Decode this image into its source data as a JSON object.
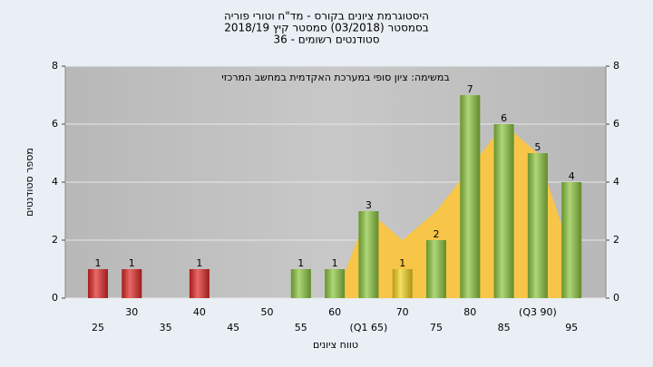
{
  "chart_data": {
    "type": "bar",
    "title": "היסטוגרמת ציונים בקורס - מד\"ח וטורי פוריה",
    "subtitle": "בסמסטר  (03/2018)  סמסטר קיץ  2018/19",
    "subtitle2": "סטודנטים רשומים - 36",
    "annotation": "במשימה: ציון סופי במערכת האקדמית במחשב המרכזי",
    "y_label": "מספר סטודנטים",
    "x_label": "טווח ציונים",
    "categories": [
      "25",
      "30",
      "35",
      "40",
      "45",
      "50",
      "55",
      "60",
      "(Q1 65)",
      "70",
      "75",
      "80",
      "85",
      "(Q3 90)",
      "95"
    ],
    "values": [
      1,
      1,
      0,
      1,
      0,
      0,
      1,
      1,
      3,
      1,
      2,
      7,
      6,
      5,
      4
    ],
    "colors": [
      "#e02828",
      "#e02828",
      "#e02828",
      "#e02828",
      "#8cc63f",
      "#8cc63f",
      "#8cc63f",
      "#8cc63f",
      "#8cc63f",
      "#f2d21e",
      "#8cc63f",
      "#8cc63f",
      "#8cc63f",
      "#8cc63f",
      "#8cc63f"
    ],
    "area": {
      "color": "#f7c548",
      "values": [
        null,
        null,
        null,
        null,
        null,
        null,
        null,
        0,
        3,
        2,
        3,
        4.5,
        6,
        5,
        1.5
      ]
    },
    "ylim": [
      0,
      8
    ],
    "yticks": [
      0,
      2,
      4,
      6,
      8
    ],
    "grid": true
  }
}
